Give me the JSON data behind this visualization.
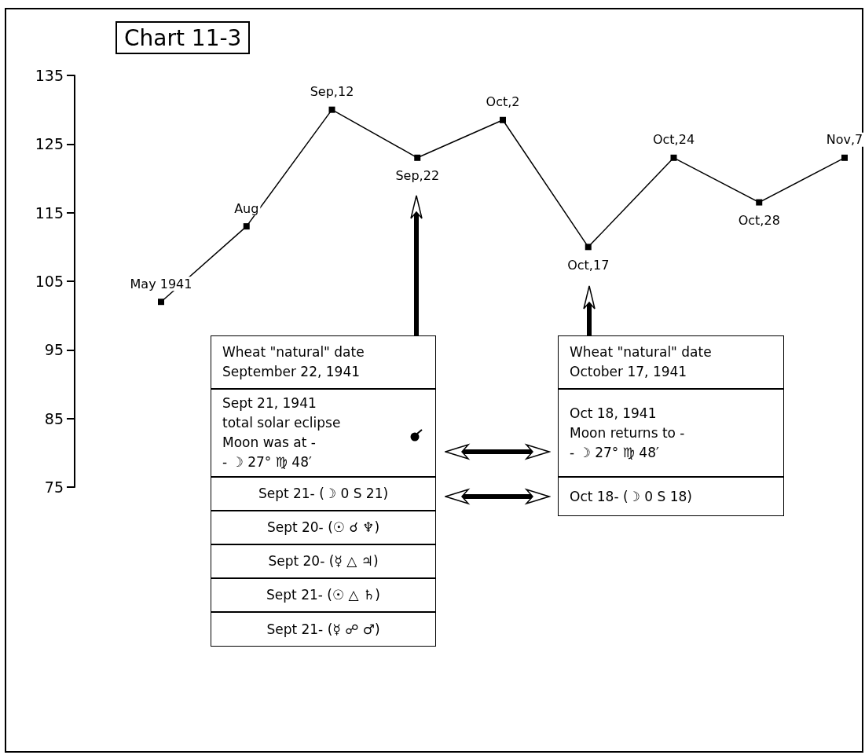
{
  "chart_data": {
    "type": "line",
    "title": "Chart 11-3",
    "categories": [
      "May 1941",
      "Aug",
      "Sep,12",
      "Sep,22",
      "Oct,2",
      "Oct,17",
      "Oct,24",
      "Oct,28",
      "Nov,7"
    ],
    "values": [
      102,
      113,
      130,
      123,
      128.5,
      110,
      123,
      116.5,
      123
    ],
    "color": "#000000",
    "marker": "square",
    "line_style": "solid",
    "grid": false,
    "tick_labels": "y",
    "ylim": [
      75,
      135
    ],
    "yticks": [
      75,
      85,
      95,
      105,
      115,
      125,
      135
    ],
    "annotations": [
      "Wheat \"natural\" date\nSeptember 22, 1941",
      "Sept 21, 1941\ntotal solar eclipse\nMoon was at -\n- ☽ 27° ♍ 48′",
      "Sept 21- (☽ 0 S 21)",
      "Sept 20- (☉ ☌ ♆)",
      "Sept 20- (☿ △ ♃)",
      "Sept 21- (☉ △ ♄)",
      "Sept 21- (☿ ☍ ♂)",
      "Wheat \"natural\" date\nOctober 17, 1941",
      "Oct 18, 1941\nMoon returns to -\n- ☽ 27° ♍ 48′",
      "Oct 18- (☽ 0 S 18)"
    ]
  }
}
